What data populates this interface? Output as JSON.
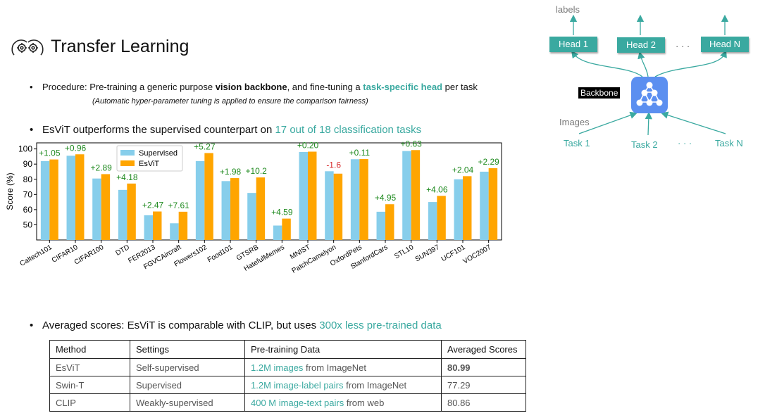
{
  "title": "Transfer Learning",
  "procedure": {
    "prefix": "Procedure: Pre-training a generic purpose ",
    "backbone": "vision backbone",
    "middle": ", and fine-tuning a ",
    "head": "task-specific head",
    "suffix": " per task",
    "note": "(Automatic hyper-parameter tuning is applied to ensure the comparison fairness)"
  },
  "outperform": {
    "prefix": "EsViT outperforms the supervised counterpart on ",
    "highlight": "17 out of  18 classification tasks"
  },
  "averaged": {
    "prefix": "Averaged scores: EsViT is comparable with CLIP, but uses ",
    "highlight": "300x less pre-trained data"
  },
  "chart_data": {
    "type": "bar",
    "ylabel": "Score (%)",
    "yticks": [
      50,
      60,
      70,
      80,
      90,
      100
    ],
    "ylim": [
      40,
      104
    ],
    "legend_position": "top-center",
    "categories": [
      "Caltech101",
      "CIFAR10",
      "CIFAR100",
      "DTD",
      "FER2013",
      "FGVCAircraft",
      "Flowers102",
      "Food101",
      "GTSRB",
      "HatefulMemes",
      "MNIST",
      "PatchCamelyon",
      "OxfordPets",
      "StanfordCars",
      "STL10",
      "SUN397",
      "UCF101",
      "VOC2007"
    ],
    "series": [
      {
        "name": "Supervised",
        "color": "#87ceeb",
        "values": [
          92,
          95.5,
          80.5,
          73,
          56.3,
          51,
          92,
          78.8,
          71,
          49.5,
          98,
          85.3,
          93.2,
          58.6,
          98.6,
          65,
          80,
          85
        ]
      },
      {
        "name": "EsViT",
        "color": "#ffa500",
        "values": [
          93.05,
          96.46,
          83.39,
          77.18,
          58.77,
          58.61,
          97.27,
          80.78,
          81.2,
          54.09,
          98.2,
          83.7,
          93.31,
          63.55,
          99.23,
          69.06,
          82.04,
          87.29
        ]
      }
    ],
    "annotations": [
      "+1.05",
      "+0.96",
      "+2.89",
      "+4.18",
      "+2.47",
      "+7.61",
      "+5.27",
      "+1.98",
      "+10.2",
      "+4.59",
      "+0.20",
      "-1.6",
      "+0.11",
      "+4.95",
      "+0.63",
      "+4.06",
      "+2.04",
      "+2.29"
    ],
    "annotation_colors": {
      "positive": "#1f8a1f",
      "negative": "#d62728"
    }
  },
  "table": {
    "headers": [
      "Method",
      "Settings",
      "Pre-training Data",
      "Averaged Scores"
    ],
    "rows": [
      {
        "method": "EsViT",
        "settings": "Self-supervised",
        "data_hl": "1.2M images",
        "data_rest": " from ImageNet",
        "score": "80.99"
      },
      {
        "method": "Swin-T",
        "settings": "Supervised",
        "data_hl": "1.2M image-label pairs",
        "data_rest": " from ImageNet",
        "score": "77.29"
      },
      {
        "method": "CLIP",
        "settings": "Weakly-supervised",
        "data_hl": "400 M image-text pairs",
        "data_rest": " from web",
        "score": "80.86"
      }
    ]
  },
  "diagram": {
    "labels_text": "labels",
    "images_text": "Images",
    "backbone_text": "Backbone",
    "heads": [
      "Head 1",
      "Head 2",
      "Head N"
    ],
    "tasks": [
      "Task 1",
      "Task 2",
      "Task N"
    ],
    "ellipsis": "· · ·"
  }
}
